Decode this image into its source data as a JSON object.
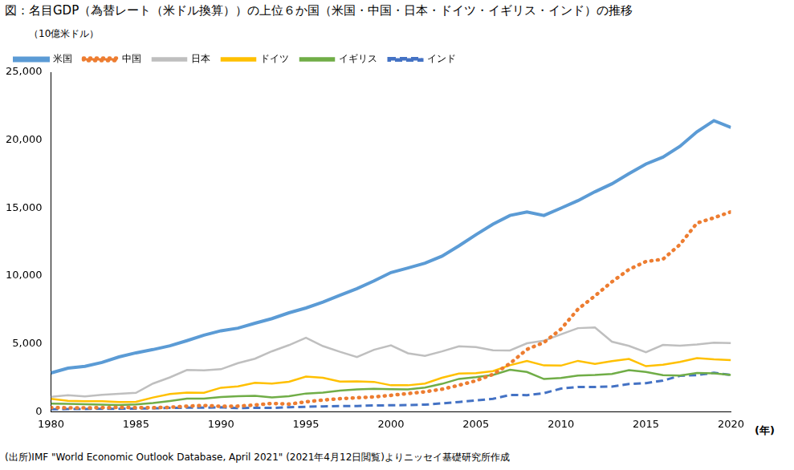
{
  "chart_data": {
    "type": "line",
    "title": "図：名目GDP（為替レート（米ドル換算））の上位６か国（米国・中国・日本・ドイツ・イギリス・インド）の推移",
    "y_label": "（10億米ドル）",
    "x_label": "(年)",
    "note": "(出所)IMF \"World Economic Outlook Database, April 2021\" (2021年4月12日閲覧)よりニッセイ基礎研究所作成",
    "x": [
      1980,
      1981,
      1982,
      1983,
      1984,
      1985,
      1986,
      1987,
      1988,
      1989,
      1990,
      1991,
      1992,
      1993,
      1994,
      1995,
      1996,
      1997,
      1998,
      1999,
      2000,
      2001,
      2002,
      2003,
      2004,
      2005,
      2006,
      2007,
      2008,
      2009,
      2010,
      2011,
      2012,
      2013,
      2014,
      2015,
      2016,
      2017,
      2018,
      2019,
      2020
    ],
    "series": [
      {
        "name": "米国",
        "color": "#5b9bd5",
        "line_style": "solid",
        "values": [
          2857,
          3207,
          3344,
          3634,
          4037,
          4339,
          4580,
          4855,
          5236,
          5642,
          5963,
          6158,
          6520,
          6859,
          7287,
          7640,
          8073,
          8578,
          9063,
          9631,
          10252,
          10582,
          10936,
          11458,
          12214,
          13037,
          13815,
          14452,
          14713,
          14449,
          14992,
          15543,
          16197,
          16785,
          17527,
          18238,
          18745,
          19543,
          20612,
          21433,
          20933
        ]
      },
      {
        "name": "中国",
        "color": "#ed7d31",
        "line_style": "dotted",
        "values": [
          303,
          295,
          285,
          306,
          316,
          310,
          302,
          330,
          413,
          461,
          398,
          415,
          494,
          617,
          564,
          734,
          864,
          962,
          1029,
          1094,
          1211,
          1339,
          1471,
          1660,
          1955,
          2286,
          2752,
          3550,
          4594,
          5102,
          6087,
          7552,
          8532,
          9570,
          10476,
          11062,
          11233,
          12310,
          13895,
          14280,
          14723
        ]
      },
      {
        "name": "日本",
        "color": "#bfbfbf",
        "line_style": "solid",
        "values": [
          1105,
          1218,
          1134,
          1243,
          1318,
          1398,
          2078,
          2532,
          3072,
          3055,
          3133,
          3584,
          3909,
          4454,
          4907,
          5449,
          4833,
          4414,
          4033,
          4562,
          4888,
          4304,
          4115,
          4446,
          4815,
          4755,
          4530,
          4515,
          5038,
          5231,
          5700,
          6157,
          6203,
          5156,
          4850,
          4389,
          4923,
          4867,
          4955,
          5080,
          5050
        ]
      },
      {
        "name": "ドイツ",
        "color": "#ffc000",
        "line_style": "solid",
        "values": [
          951,
          800,
          777,
          771,
          719,
          732,
          1049,
          1306,
          1407,
          1399,
          1772,
          1869,
          2132,
          2070,
          2205,
          2592,
          2504,
          2218,
          2244,
          2200,
          1950,
          1950,
          2080,
          2500,
          2815,
          2846,
          2993,
          3425,
          3745,
          3412,
          3399,
          3749,
          3528,
          3733,
          3884,
          3357,
          3467,
          3665,
          3952,
          3861,
          3806
        ]
      },
      {
        "name": "イギリス",
        "color": "#70ad47",
        "line_style": "solid",
        "values": [
          604,
          579,
          550,
          522,
          497,
          534,
          638,
          791,
          968,
          963,
          1093,
          1143,
          1180,
          1062,
          1140,
          1344,
          1418,
          1560,
          1653,
          1688,
          1662,
          1641,
          1785,
          2055,
          2421,
          2544,
          2713,
          3094,
          2930,
          2412,
          2485,
          2663,
          2708,
          2787,
          3066,
          2933,
          2695,
          2666,
          2861,
          2830,
          2708
        ]
      },
      {
        "name": "インド",
        "color": "#4472c4",
        "line_style": "dashed",
        "values": [
          186,
          196,
          204,
          222,
          215,
          237,
          253,
          283,
          301,
          301,
          327,
          274,
          293,
          284,
          333,
          367,
          400,
          423,
          429,
          467,
          477,
          494,
          524,
          618,
          722,
          834,
          949,
          1238,
          1224,
          1366,
          1708,
          1823,
          1828,
          1857,
          2039,
          2104,
          2295,
          2651,
          2702,
          2871,
          2709
        ]
      }
    ],
    "xlim": [
      1980,
      2020
    ],
    "xticks": [
      1980,
      1985,
      1990,
      1995,
      2000,
      2005,
      2010,
      2015,
      2020
    ],
    "ylim": [
      0,
      25000
    ],
    "yticks": [
      0,
      {
        "value": 5000,
        "label": "5,000"
      },
      {
        "value": 10000,
        "label": "10,000"
      },
      {
        "value": 15000,
        "label": "15,000"
      },
      {
        "value": 20000,
        "label": "20,000"
      },
      {
        "value": 25000,
        "label": "25,000"
      }
    ],
    "grid": false,
    "legend": "top"
  }
}
